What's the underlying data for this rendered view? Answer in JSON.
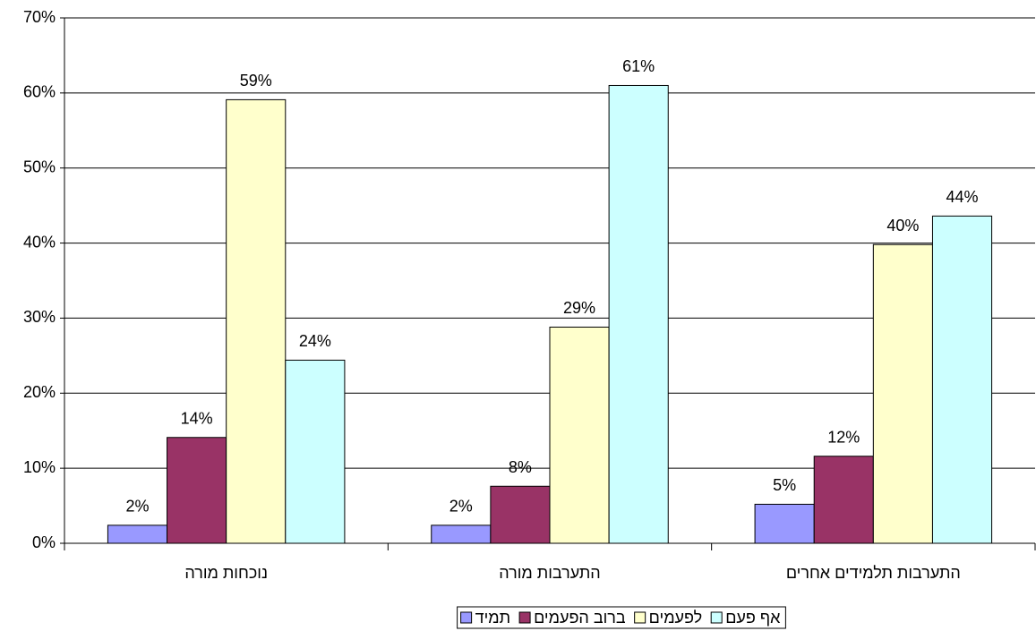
{
  "chart_data": {
    "type": "bar",
    "categories": [
      "נוכחות מורה",
      "התערבות מורה",
      "התערבות תלמידים אחרים"
    ],
    "series": [
      {
        "name": "תמיד",
        "color": "#9999ff",
        "values": [
          2.4,
          2.4,
          5.2
        ],
        "value_labels": [
          "2%",
          "2%",
          "5%"
        ]
      },
      {
        "name": "ברוב הפעמים",
        "color": "#993366",
        "values": [
          14.1,
          7.6,
          11.6
        ],
        "value_labels": [
          "14%",
          "8%",
          "12%"
        ]
      },
      {
        "name": "לפעמים",
        "color": "#ffffcc",
        "values": [
          59.1,
          28.8,
          39.8
        ],
        "value_labels": [
          "59%",
          "29%",
          "40%"
        ]
      },
      {
        "name": "אף פעם",
        "color": "#ccffff",
        "values": [
          24.4,
          61.0,
          43.6
        ],
        "value_labels": [
          "24%",
          "61%",
          "44%"
        ]
      }
    ],
    "ylim": [
      0,
      70
    ],
    "yticks": [
      {
        "value": 0,
        "label": "0%"
      },
      {
        "value": 10,
        "label": "10%"
      },
      {
        "value": 20,
        "label": "20%"
      },
      {
        "value": 30,
        "label": "30%"
      },
      {
        "value": 40,
        "label": "40%"
      },
      {
        "value": 50,
        "label": "50%"
      },
      {
        "value": 60,
        "label": "60%"
      },
      {
        "value": 70,
        "label": "70%"
      }
    ],
    "grid": true,
    "legend": "bottom"
  }
}
